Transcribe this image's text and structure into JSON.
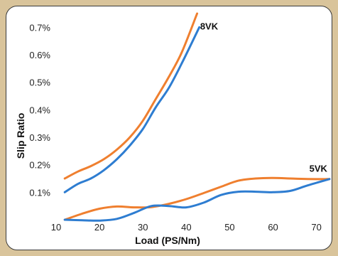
{
  "chart_data": {
    "type": "line",
    "xlabel": "Load (PS/Nm)",
    "ylabel": "Slip Ratio",
    "xlim": [
      10,
      73
    ],
    "ylim": [
      0,
      0.75
    ],
    "x_ticks": [
      "10",
      "20",
      "30",
      "40",
      "50",
      "60",
      "70"
    ],
    "x_tick_values": [
      10,
      20,
      30,
      40,
      50,
      60,
      70
    ],
    "y_ticks": [
      "0.1%",
      "0.2%",
      "0.3%",
      "0.4%",
      "0.5%",
      "0.6%",
      "0.7%"
    ],
    "y_tick_values": [
      0.1,
      0.2,
      0.3,
      0.4,
      0.5,
      0.6,
      0.7
    ],
    "grid": false,
    "series_labels": [
      {
        "text": "8VK",
        "x": 42.7,
        "y": 0.705
      },
      {
        "text": "5VK",
        "x": 72.5,
        "y": 0.188
      }
    ],
    "series": [
      {
        "color": "#ef7f2f",
        "x": [
          12,
          15,
          18,
          21,
          24,
          27,
          30,
          33,
          36,
          39,
          42.5
        ],
        "values": [
          0.15,
          0.175,
          0.195,
          0.22,
          0.255,
          0.3,
          0.36,
          0.44,
          0.52,
          0.61,
          0.75
        ]
      },
      {
        "color": "#2e7dd1",
        "x": [
          12,
          15,
          18,
          21,
          24,
          27,
          30,
          33,
          36,
          39,
          43
        ],
        "values": [
          0.1,
          0.13,
          0.15,
          0.18,
          0.22,
          0.27,
          0.33,
          0.41,
          0.48,
          0.57,
          0.7
        ]
      },
      {
        "color": "#ef7f2f",
        "x": [
          12,
          16,
          20,
          24,
          28,
          32,
          36,
          40,
          44,
          48,
          52,
          56,
          60,
          64,
          68,
          73
        ],
        "values": [
          0.0,
          0.022,
          0.04,
          0.048,
          0.045,
          0.046,
          0.058,
          0.075,
          0.097,
          0.12,
          0.142,
          0.15,
          0.152,
          0.15,
          0.148,
          0.148
        ]
      },
      {
        "color": "#2e7dd1",
        "x": [
          12,
          16,
          20,
          24,
          28,
          32,
          36,
          40,
          44,
          48,
          52,
          56,
          60,
          64,
          68,
          73
        ],
        "values": [
          0.0,
          -0.002,
          -0.003,
          0.003,
          0.025,
          0.05,
          0.05,
          0.045,
          0.062,
          0.09,
          0.102,
          0.102,
          0.1,
          0.105,
          0.125,
          0.148
        ]
      }
    ]
  }
}
